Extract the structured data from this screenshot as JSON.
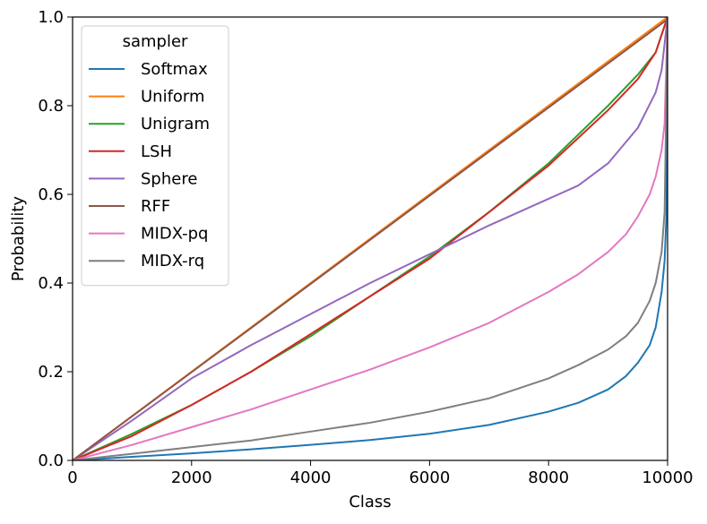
{
  "chart_data": {
    "type": "line",
    "title": "",
    "xlabel": "Class",
    "ylabel": "Probability",
    "xlim": [
      0,
      10000
    ],
    "ylim": [
      0.0,
      1.0
    ],
    "grid": false,
    "x_ticks": [
      0,
      2000,
      4000,
      6000,
      8000,
      10000
    ],
    "x_tick_labels": [
      "0",
      "2000",
      "4000",
      "6000",
      "8000",
      "10000"
    ],
    "y_ticks": [
      0.0,
      0.2,
      0.4,
      0.6,
      0.8,
      1.0
    ],
    "y_tick_labels": [
      "0.0",
      "0.2",
      "0.4",
      "0.6",
      "0.8",
      "1.0"
    ],
    "legend": {
      "title": "sampler",
      "location": "upper-left"
    },
    "series": [
      {
        "name": "Softmax",
        "color": "#1f77b4",
        "x": [
          0,
          1000,
          2000,
          3000,
          4000,
          5000,
          6000,
          7000,
          8000,
          8500,
          9000,
          9300,
          9500,
          9700,
          9800,
          9900,
          9950,
          9980,
          10000
        ],
        "y": [
          0,
          0.008,
          0.016,
          0.025,
          0.035,
          0.046,
          0.06,
          0.08,
          0.11,
          0.13,
          0.16,
          0.19,
          0.22,
          0.26,
          0.3,
          0.38,
          0.45,
          0.55,
          1.0
        ]
      },
      {
        "name": "Uniform",
        "color": "#ff7f0e",
        "x": [
          0,
          10000
        ],
        "y": [
          0,
          1.0
        ]
      },
      {
        "name": "Unigram",
        "color": "#2ca02c",
        "x": [
          0,
          1000,
          2000,
          3000,
          4000,
          5000,
          6000,
          7000,
          8000,
          9000,
          9500,
          9800,
          10000
        ],
        "y": [
          0,
          0.06,
          0.125,
          0.2,
          0.28,
          0.37,
          0.46,
          0.56,
          0.67,
          0.8,
          0.87,
          0.92,
          1.0
        ]
      },
      {
        "name": "LSH",
        "color": "#d62728",
        "x": [
          0,
          1000,
          2000,
          3000,
          4000,
          5000,
          6000,
          7000,
          8000,
          9000,
          9500,
          9800,
          10000
        ],
        "y": [
          0,
          0.055,
          0.125,
          0.2,
          0.285,
          0.37,
          0.455,
          0.56,
          0.665,
          0.79,
          0.86,
          0.92,
          1.0
        ]
      },
      {
        "name": "Sphere",
        "color": "#9467bd",
        "x": [
          0,
          1000,
          2000,
          3000,
          4000,
          5000,
          6000,
          7000,
          8000,
          8500,
          9000,
          9500,
          9800,
          9900,
          10000
        ],
        "y": [
          0,
          0.09,
          0.185,
          0.26,
          0.33,
          0.4,
          0.465,
          0.53,
          0.59,
          0.62,
          0.67,
          0.75,
          0.83,
          0.88,
          1.0
        ]
      },
      {
        "name": "RFF",
        "color": "#8c564b",
        "x": [
          0,
          10000
        ],
        "y": [
          0,
          0.995
        ]
      },
      {
        "name": "MIDX-pq",
        "color": "#e377c2",
        "x": [
          0,
          1000,
          2000,
          3000,
          4000,
          5000,
          6000,
          7000,
          8000,
          8500,
          9000,
          9300,
          9500,
          9700,
          9800,
          9900,
          9950,
          10000
        ],
        "y": [
          0,
          0.035,
          0.075,
          0.115,
          0.16,
          0.205,
          0.255,
          0.31,
          0.38,
          0.42,
          0.47,
          0.51,
          0.55,
          0.6,
          0.64,
          0.7,
          0.76,
          1.0
        ]
      },
      {
        "name": "MIDX-rq",
        "color": "#7f7f7f",
        "x": [
          0,
          1000,
          2000,
          3000,
          4000,
          5000,
          6000,
          7000,
          8000,
          8500,
          9000,
          9300,
          9500,
          9700,
          9800,
          9900,
          9950,
          10000
        ],
        "y": [
          0,
          0.015,
          0.03,
          0.045,
          0.065,
          0.085,
          0.11,
          0.14,
          0.185,
          0.215,
          0.25,
          0.28,
          0.31,
          0.36,
          0.4,
          0.47,
          0.56,
          1.0
        ]
      }
    ]
  }
}
